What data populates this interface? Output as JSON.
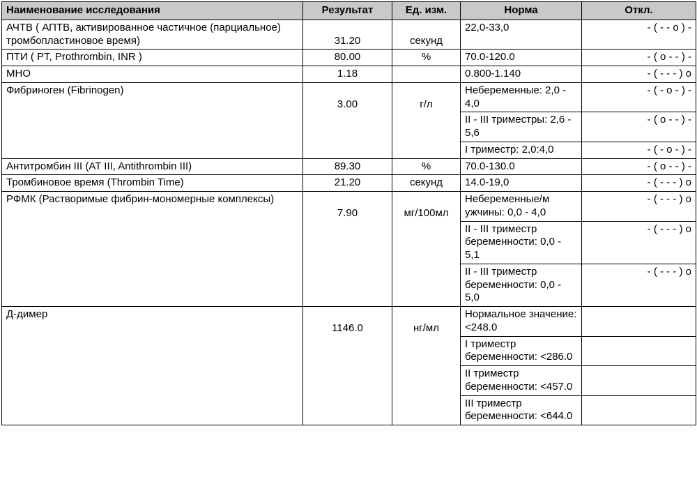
{
  "table": {
    "header_bg": "#c9c9c9",
    "border_color": "#000000",
    "font_family": "Arial",
    "font_size_pt": 11,
    "columns": [
      {
        "key": "name",
        "label": "Наименование исследования",
        "align": "left"
      },
      {
        "key": "res",
        "label": "Результат",
        "align": "center"
      },
      {
        "key": "unit",
        "label": "Ед. изм.",
        "align": "center"
      },
      {
        "key": "norm",
        "label": "Норма",
        "align": "center"
      },
      {
        "key": "dev",
        "label": "Откл.",
        "align": "center"
      }
    ],
    "rows": [
      {
        "name": "АЧТВ ( АПТВ, активированное частичное (парциальное) тромбопластиновое время)",
        "res": "31.20",
        "unit": "секунд",
        "norms": [
          {
            "norm": "22,0-33,0",
            "dev": "- ( - - o ) -"
          }
        ]
      },
      {
        "name": "ПТИ ( PT, Prothrombin, INR )",
        "res": "80.00",
        "unit": "%",
        "norms": [
          {
            "norm": "70.0-120.0",
            "dev": "- ( o - - ) -"
          }
        ]
      },
      {
        "name": "МНО",
        "res": "1.18",
        "unit": "",
        "norms": [
          {
            "norm": "0.800-1.140",
            "dev": "- ( - - - ) o"
          }
        ]
      },
      {
        "name": "Фибриноген (Fibrinogen)",
        "res": "3.00",
        "unit": "г/л",
        "norms": [
          {
            "norm": "Небеременные: 2,0 - 4,0",
            "dev": "- ( - o - ) -"
          },
          {
            "norm": "II - III триместры: 2,6 - 5,6",
            "dev": "- ( o - - ) -"
          },
          {
            "norm": "I триместр: 2,0:4,0",
            "dev": "- ( - o - ) -"
          }
        ]
      },
      {
        "name": "Антитромбин III (AT III, Antithrombin III)",
        "res": "89.30",
        "unit": "%",
        "norms": [
          {
            "norm": "70.0-130.0",
            "dev": "- ( o - - ) -"
          }
        ]
      },
      {
        "name": "Тромбиновое время (Thrombin Time)",
        "res": "21.20",
        "unit": "секунд",
        "norms": [
          {
            "norm": "14.0-19,0",
            "dev": "- ( - - - ) o"
          }
        ]
      },
      {
        "name": "РФМК (Растворимые фибрин-мономерные комплексы)",
        "res": "7.90",
        "unit": "мг/100мл",
        "norms": [
          {
            "norm": "Небеременные/м ужчины: 0,0 - 4,0",
            "dev": "- ( - - - ) o"
          },
          {
            "norm": "II - III триместр беременности: 0,0 - 5,1",
            "dev": "- ( - - - ) o"
          },
          {
            "norm": "II - III триместр беременности: 0,0 - 5,0",
            "dev": "- ( - - - ) o"
          }
        ]
      },
      {
        "name": "Д-димер",
        "res": "1146.0",
        "unit": "нг/мл",
        "norms": [
          {
            "norm": "Нормальное значение: <248.0",
            "dev": ""
          },
          {
            "norm": "I триместр беременности: <286.0",
            "dev": ""
          },
          {
            "norm": "II триместр беременности: <457.0",
            "dev": ""
          },
          {
            "norm": "III триместр беременности: <644.0",
            "dev": ""
          }
        ]
      }
    ]
  }
}
